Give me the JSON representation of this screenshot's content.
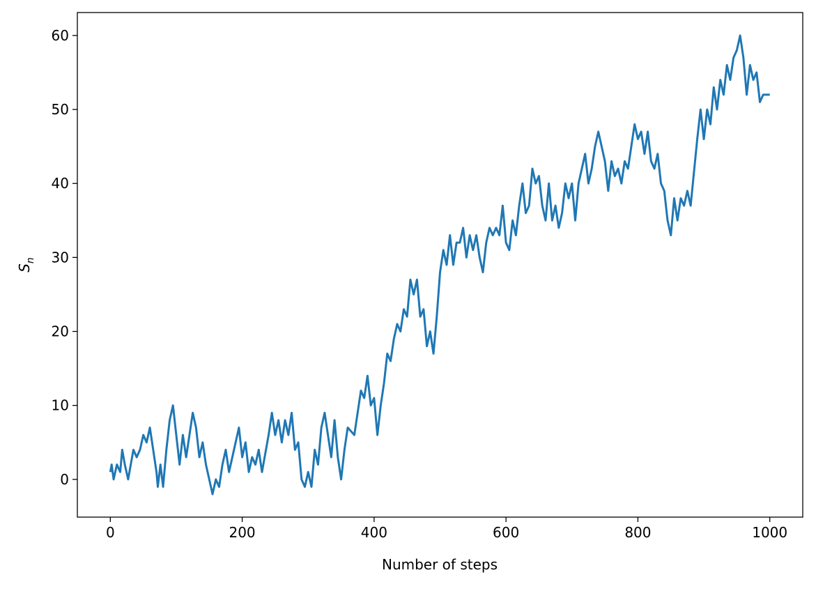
{
  "chart_data": {
    "type": "line",
    "xlabel": "Number of steps",
    "ylabel": {
      "main": "S",
      "sub": "n"
    },
    "color": "#1f77b4",
    "grid": false,
    "xlim": [
      -50,
      1050
    ],
    "ylim": [
      -5.1,
      63.1
    ],
    "xticks": [
      0,
      200,
      400,
      600,
      800,
      1000
    ],
    "yticks": [
      0,
      10,
      20,
      30,
      40,
      50,
      60
    ],
    "x": [
      0,
      2,
      5,
      10,
      15,
      18,
      22,
      27,
      35,
      40,
      45,
      50,
      55,
      60,
      65,
      70,
      72,
      76,
      80,
      85,
      90,
      95,
      100,
      105,
      110,
      115,
      125,
      130,
      135,
      140,
      145,
      150,
      155,
      160,
      165,
      170,
      175,
      180,
      185,
      190,
      195,
      200,
      205,
      210,
      215,
      220,
      225,
      230,
      240,
      245,
      250,
      255,
      260,
      265,
      270,
      275,
      280,
      285,
      290,
      295,
      300,
      305,
      310,
      315,
      320,
      325,
      330,
      335,
      340,
      345,
      350,
      355,
      360,
      370,
      375,
      380,
      385,
      390,
      395,
      400,
      405,
      410,
      415,
      420,
      425,
      430,
      435,
      440,
      445,
      450,
      455,
      460,
      465,
      470,
      475,
      480,
      485,
      490,
      495,
      500,
      505,
      510,
      515,
      520,
      525,
      530,
      535,
      540,
      545,
      550,
      555,
      560,
      565,
      570,
      575,
      580,
      585,
      590,
      595,
      600,
      605,
      610,
      615,
      620,
      625,
      630,
      635,
      640,
      645,
      650,
      655,
      660,
      665,
      670,
      675,
      680,
      685,
      690,
      695,
      700,
      705,
      710,
      715,
      720,
      725,
      730,
      735,
      740,
      745,
      750,
      755,
      760,
      765,
      770,
      775,
      780,
      785,
      790,
      795,
      800,
      805,
      810,
      815,
      820,
      825,
      830,
      835,
      840,
      845,
      850,
      855,
      860,
      865,
      870,
      875,
      880,
      890,
      895,
      900,
      905,
      910,
      915,
      920,
      925,
      930,
      935,
      940,
      945,
      950,
      955,
      960,
      965,
      970,
      975,
      980,
      985,
      990,
      1000
    ],
    "values": [
      1,
      2,
      0,
      2,
      1,
      4,
      2,
      0,
      4,
      3,
      4,
      6,
      5,
      7,
      4,
      1,
      -1,
      2,
      -1,
      4,
      8,
      10,
      6,
      2,
      6,
      3,
      9,
      7,
      3,
      5,
      2,
      0,
      -2,
      0,
      -1,
      2,
      4,
      1,
      3,
      5,
      7,
      3,
      5,
      1,
      3,
      2,
      4,
      1,
      6,
      9,
      6,
      8,
      5,
      8,
      6,
      9,
      4,
      5,
      0,
      -1,
      1,
      -1,
      4,
      2,
      7,
      9,
      6,
      3,
      8,
      3,
      0,
      4,
      7,
      6,
      9,
      12,
      11,
      14,
      10,
      11,
      6,
      10,
      13,
      17,
      16,
      19,
      21,
      20,
      23,
      22,
      27,
      25,
      27,
      22,
      23,
      18,
      20,
      17,
      22,
      28,
      31,
      29,
      33,
      29,
      32,
      32,
      34,
      30,
      33,
      31,
      33,
      30,
      28,
      32,
      34,
      33,
      34,
      33,
      37,
      32,
      31,
      35,
      33,
      37,
      40,
      36,
      37,
      42,
      40,
      41,
      37,
      35,
      40,
      35,
      37,
      34,
      36,
      40,
      38,
      40,
      35,
      40,
      42,
      44,
      40,
      42,
      45,
      47,
      45,
      43,
      39,
      43,
      41,
      42,
      40,
      43,
      42,
      45,
      48,
      46,
      47,
      44,
      47,
      43,
      42,
      44,
      40,
      39,
      35,
      33,
      38,
      35,
      38,
      37,
      39,
      37,
      46,
      50,
      46,
      50,
      48,
      53,
      50,
      54,
      52,
      56,
      54,
      57,
      58,
      60,
      57,
      52,
      56,
      54,
      55,
      51,
      52,
      52
    ]
  }
}
